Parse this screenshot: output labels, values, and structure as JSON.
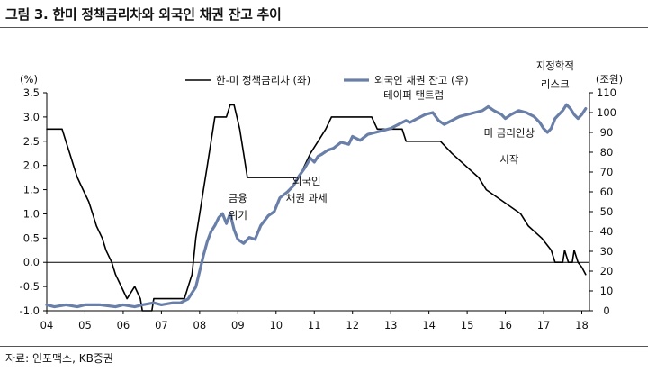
{
  "title": "그림 3. 한미 정책금리차와 외국인 채권 잔고 추이",
  "source": "자료: 인포맥스, KB증권",
  "chart_data": {
    "type": "line",
    "left_axis": {
      "unit": "(%)",
      "min": -1.0,
      "max": 3.5,
      "step": 0.5,
      "ticks": [
        "-1.0",
        "-0.5",
        "0.0",
        "0.5",
        "1.0",
        "1.5",
        "2.0",
        "2.5",
        "3.0",
        "3.5"
      ]
    },
    "right_axis": {
      "unit": "(조원)",
      "min": 0,
      "max": 110,
      "step": 10,
      "ticks": [
        "0",
        "10",
        "20",
        "30",
        "40",
        "50",
        "60",
        "70",
        "80",
        "90",
        "100",
        "110"
      ]
    },
    "x_axis": {
      "min": 2004,
      "max": 2018.2,
      "ticks": [
        "04",
        "05",
        "06",
        "07",
        "08",
        "09",
        "10",
        "11",
        "12",
        "13",
        "14",
        "15",
        "16",
        "17",
        "18"
      ]
    },
    "legend": {
      "position": "top",
      "entries": [
        "한-미 정책금리차 (좌)",
        "외국인 채권 잔고 (우)"
      ]
    },
    "series": [
      {
        "name": "한-미 정책금리차 (좌)",
        "axis": "left",
        "color": "#000000",
        "points": [
          [
            2004.0,
            2.75
          ],
          [
            2004.4,
            2.75
          ],
          [
            2004.5,
            2.5
          ],
          [
            2004.6,
            2.25
          ],
          [
            2004.7,
            2.0
          ],
          [
            2004.8,
            1.75
          ],
          [
            2004.95,
            1.5
          ],
          [
            2005.1,
            1.25
          ],
          [
            2005.2,
            1.0
          ],
          [
            2005.3,
            0.75
          ],
          [
            2005.45,
            0.5
          ],
          [
            2005.55,
            0.25
          ],
          [
            2005.7,
            0.0
          ],
          [
            2005.8,
            -0.25
          ],
          [
            2005.95,
            -0.5
          ],
          [
            2006.1,
            -0.75
          ],
          [
            2006.3,
            -0.5
          ],
          [
            2006.45,
            -0.75
          ],
          [
            2006.5,
            -1.0
          ],
          [
            2006.75,
            -1.0
          ],
          [
            2006.8,
            -0.75
          ],
          [
            2007.6,
            -0.75
          ],
          [
            2007.7,
            -0.5
          ],
          [
            2007.8,
            -0.25
          ],
          [
            2007.9,
            0.5
          ],
          [
            2008.0,
            1.0
          ],
          [
            2008.1,
            1.5
          ],
          [
            2008.2,
            2.0
          ],
          [
            2008.3,
            2.5
          ],
          [
            2008.4,
            3.0
          ],
          [
            2008.7,
            3.0
          ],
          [
            2008.8,
            3.25
          ],
          [
            2008.9,
            3.25
          ],
          [
            2009.05,
            2.75
          ],
          [
            2009.15,
            2.25
          ],
          [
            2009.25,
            1.75
          ],
          [
            2010.6,
            1.75
          ],
          [
            2010.75,
            2.0
          ],
          [
            2010.9,
            2.25
          ],
          [
            2011.1,
            2.5
          ],
          [
            2011.3,
            2.75
          ],
          [
            2011.45,
            3.0
          ],
          [
            2012.5,
            3.0
          ],
          [
            2012.65,
            2.75
          ],
          [
            2013.3,
            2.75
          ],
          [
            2013.4,
            2.5
          ],
          [
            2014.3,
            2.5
          ],
          [
            2014.6,
            2.25
          ],
          [
            2014.95,
            2.0
          ],
          [
            2015.3,
            1.75
          ],
          [
            2015.5,
            1.5
          ],
          [
            2015.95,
            1.25
          ],
          [
            2016.4,
            1.0
          ],
          [
            2016.6,
            0.75
          ],
          [
            2016.95,
            0.5
          ],
          [
            2017.2,
            0.25
          ],
          [
            2017.3,
            0.0
          ],
          [
            2017.5,
            0.0
          ],
          [
            2017.55,
            0.25
          ],
          [
            2017.65,
            0.0
          ],
          [
            2017.75,
            0.0
          ],
          [
            2017.8,
            0.25
          ],
          [
            2017.9,
            0.0
          ],
          [
            2018.0,
            -0.1
          ],
          [
            2018.1,
            -0.25
          ]
        ]
      },
      {
        "name": "외국인 채권 잔고 (우)",
        "axis": "right",
        "color": "#6a7fa8",
        "points": [
          [
            2004.0,
            3
          ],
          [
            2004.2,
            2
          ],
          [
            2004.5,
            3
          ],
          [
            2004.8,
            2
          ],
          [
            2005.0,
            3
          ],
          [
            2005.4,
            3
          ],
          [
            2005.8,
            2
          ],
          [
            2006.0,
            3
          ],
          [
            2006.3,
            2
          ],
          [
            2006.5,
            3
          ],
          [
            2006.8,
            4
          ],
          [
            2007.0,
            3
          ],
          [
            2007.3,
            4
          ],
          [
            2007.5,
            4
          ],
          [
            2007.7,
            6
          ],
          [
            2007.9,
            12
          ],
          [
            2008.0,
            20
          ],
          [
            2008.1,
            28
          ],
          [
            2008.2,
            35
          ],
          [
            2008.3,
            40
          ],
          [
            2008.4,
            43
          ],
          [
            2008.5,
            47
          ],
          [
            2008.6,
            49
          ],
          [
            2008.7,
            44
          ],
          [
            2008.8,
            49
          ],
          [
            2008.9,
            41
          ],
          [
            2009.0,
            36
          ],
          [
            2009.15,
            34
          ],
          [
            2009.3,
            37
          ],
          [
            2009.45,
            36
          ],
          [
            2009.6,
            43
          ],
          [
            2009.8,
            48
          ],
          [
            2009.95,
            50
          ],
          [
            2010.1,
            57
          ],
          [
            2010.3,
            60
          ],
          [
            2010.45,
            63
          ],
          [
            2010.6,
            68
          ],
          [
            2010.75,
            72
          ],
          [
            2010.9,
            77
          ],
          [
            2011.0,
            75
          ],
          [
            2011.1,
            78
          ],
          [
            2011.2,
            79
          ],
          [
            2011.35,
            81
          ],
          [
            2011.5,
            82
          ],
          [
            2011.7,
            85
          ],
          [
            2011.9,
            84
          ],
          [
            2012.0,
            88
          ],
          [
            2012.2,
            86
          ],
          [
            2012.4,
            89
          ],
          [
            2012.6,
            90
          ],
          [
            2012.8,
            91
          ],
          [
            2013.0,
            92
          ],
          [
            2013.2,
            94
          ],
          [
            2013.4,
            96
          ],
          [
            2013.5,
            95
          ],
          [
            2013.7,
            97
          ],
          [
            2013.9,
            99
          ],
          [
            2014.1,
            100
          ],
          [
            2014.25,
            96
          ],
          [
            2014.4,
            94
          ],
          [
            2014.6,
            96
          ],
          [
            2014.8,
            98
          ],
          [
            2015.0,
            99
          ],
          [
            2015.2,
            100
          ],
          [
            2015.4,
            101
          ],
          [
            2015.55,
            103
          ],
          [
            2015.7,
            101
          ],
          [
            2015.9,
            99
          ],
          [
            2016.0,
            97
          ],
          [
            2016.15,
            99
          ],
          [
            2016.35,
            101
          ],
          [
            2016.55,
            100
          ],
          [
            2016.75,
            98
          ],
          [
            2016.9,
            95
          ],
          [
            2017.0,
            92
          ],
          [
            2017.1,
            90
          ],
          [
            2017.2,
            92
          ],
          [
            2017.3,
            97
          ],
          [
            2017.4,
            99
          ],
          [
            2017.5,
            101
          ],
          [
            2017.6,
            104
          ],
          [
            2017.7,
            102
          ],
          [
            2017.8,
            99
          ],
          [
            2017.9,
            97
          ],
          [
            2018.0,
            99
          ],
          [
            2018.1,
            102
          ]
        ]
      }
    ],
    "annotations": [
      {
        "text": "금융",
        "x": 2009.0,
        "y": 1.25
      },
      {
        "text": "위기",
        "x": 2009.0,
        "y": 0.9
      },
      {
        "text": "외국인",
        "x": 2010.8,
        "y": 1.6
      },
      {
        "text": "채권 과세",
        "x": 2010.8,
        "y": 1.25
      },
      {
        "text": "테이퍼 탠트럼",
        "x": 2013.6,
        "y": 3.38
      },
      {
        "text": "미 금리인상",
        "x": 2016.1,
        "y": 2.6
      },
      {
        "text": "시작",
        "x": 2016.1,
        "y": 2.05
      },
      {
        "text": "지정학적",
        "x": 2017.3,
        "y": 3.98
      },
      {
        "text": "리스크",
        "x": 2017.3,
        "y": 3.6
      }
    ]
  }
}
